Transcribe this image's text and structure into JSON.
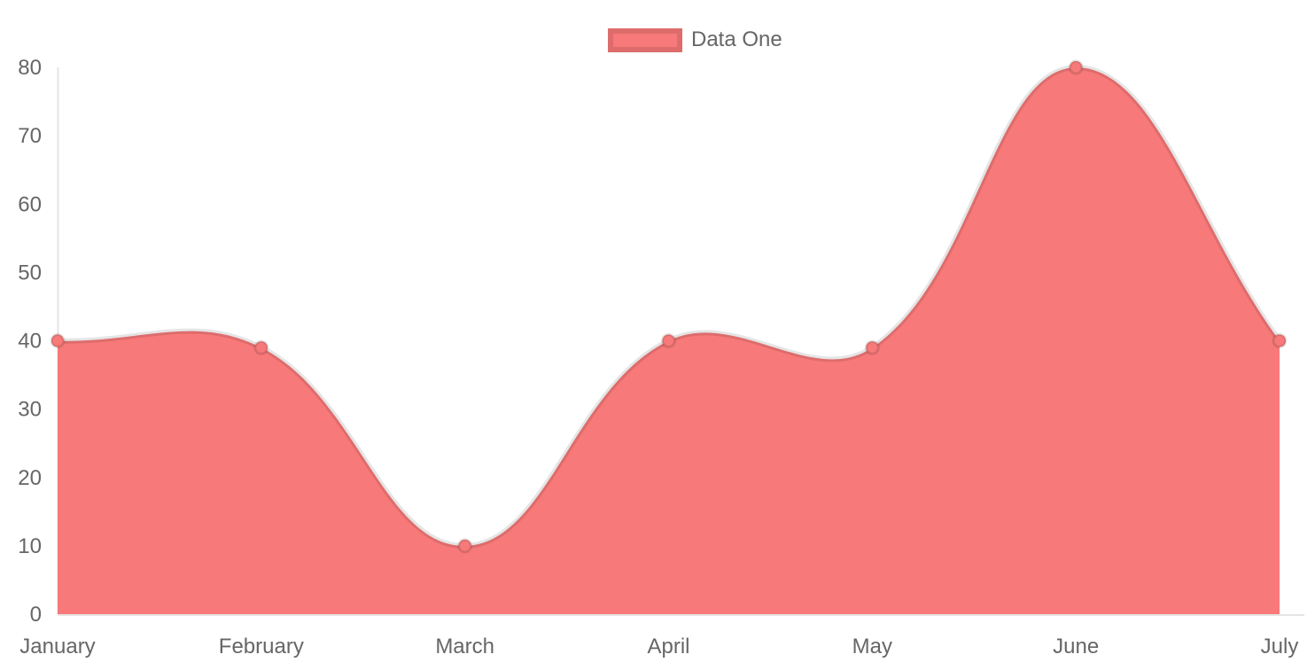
{
  "chart_data": {
    "type": "area",
    "title": "",
    "xlabel": "",
    "ylabel": "",
    "categories": [
      "January",
      "February",
      "March",
      "April",
      "May",
      "June",
      "July"
    ],
    "series": [
      {
        "name": "Data One",
        "values": [
          40,
          39,
          10,
          40,
          39,
          80,
          40
        ],
        "fill_color": "#f87979",
        "point_color": "#f87979",
        "line_color": "rgba(0,0,0,0.1)"
      }
    ],
    "ylim": [
      0,
      80
    ],
    "y_ticks": [
      0,
      10,
      20,
      30,
      40,
      50,
      60,
      70,
      80
    ],
    "grid": false,
    "legend_position": "top",
    "line_tension": 0.4
  },
  "legend": {
    "label": "Data One"
  },
  "colors": {
    "fill": "#f87979",
    "axis_line": "rgba(0,0,0,0.1)",
    "curve_stroke": "rgba(0,0,0,0.1)",
    "point_border": "rgba(0,0,0,0.12)",
    "tick_text": "#666666",
    "background": "#ffffff"
  }
}
